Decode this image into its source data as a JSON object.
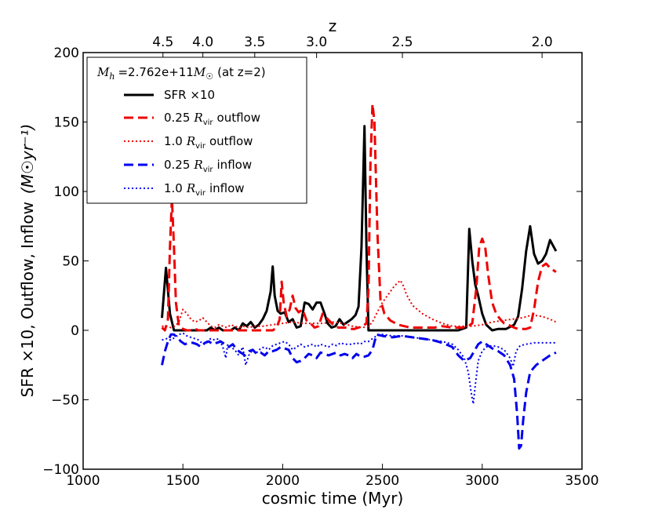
{
  "chart_data": {
    "type": "line",
    "xlabel": "cosmic time (Myr)",
    "ylabel": "SFR ×10, Outflow, Inflow",
    "ylabel_units": "(M☉yr⁻¹)",
    "xlim": [
      1000,
      3500
    ],
    "ylim": [
      -100,
      200
    ],
    "x_ticks": [
      1000,
      1500,
      2000,
      2500,
      3000,
      3500
    ],
    "x_tick_labels": [
      "1000",
      "1500",
      "2000",
      "2500",
      "3000",
      "3500"
    ],
    "y_ticks": [
      -100,
      -50,
      0,
      50,
      100,
      150,
      200
    ],
    "y_tick_labels": [
      "−100",
      "−50",
      "0",
      "50",
      "100",
      "150",
      "200"
    ],
    "top_axis": {
      "label": "z",
      "ticks": [
        {
          "t": 1400,
          "label": "4.5"
        },
        {
          "t": 1600,
          "label": "4.0"
        },
        {
          "t": 1860,
          "label": "3.5"
        },
        {
          "t": 2170,
          "label": "3.0"
        },
        {
          "t": 2600,
          "label": "2.5"
        },
        {
          "t": 3300,
          "label": "2.0"
        }
      ]
    },
    "legend": {
      "title": "M_h =2.762e+11 M☉ (at z=2)",
      "title_mass": "=2.762e+11",
      "title_suffix": "(at z=2)",
      "placement": "top-left",
      "entries": [
        {
          "label": "SFR ×10",
          "text": "SFR ×10"
        },
        {
          "label": "0.25 R_vir outflow",
          "prefix": "0.25",
          "suffix": "outflow"
        },
        {
          "label": "1.0 R_vir outflow",
          "prefix": "1.0",
          "suffix": "outflow"
        },
        {
          "label": "0.25 R_vir inflow",
          "prefix": "0.25",
          "suffix": "inflow"
        },
        {
          "label": "1.0 R_vir inflow",
          "prefix": "1.0",
          "suffix": "inflow"
        }
      ]
    },
    "series": [
      {
        "name": "SFR ×10",
        "color": "#000000",
        "dash": "solid",
        "width": 3,
        "x": [
          1395,
          1415,
          1435,
          1455,
          1475,
          1500,
          1525,
          1550,
          1575,
          1600,
          1620,
          1640,
          1660,
          1680,
          1700,
          1720,
          1740,
          1760,
          1780,
          1800,
          1820,
          1840,
          1860,
          1880,
          1900,
          1920,
          1940,
          1950,
          1960,
          1975,
          1990,
          2010,
          2030,
          2050,
          2070,
          2090,
          2110,
          2130,
          2150,
          2170,
          2190,
          2210,
          2225,
          2245,
          2265,
          2285,
          2305,
          2325,
          2345,
          2365,
          2380,
          2395,
          2410,
          2420,
          2430,
          2450,
          2500,
          2600,
          2700,
          2800,
          2880,
          2920,
          2935,
          2950,
          2965,
          2980,
          3000,
          3020,
          3050,
          3080,
          3120,
          3160,
          3180,
          3200,
          3220,
          3240,
          3260,
          3280,
          3300,
          3320,
          3340,
          3370
        ],
        "y": [
          9,
          45,
          12,
          0,
          0,
          0,
          0,
          0,
          0,
          0,
          0,
          2,
          0,
          2,
          0,
          0,
          0,
          2,
          0,
          5,
          3,
          6,
          2,
          4,
          8,
          14,
          28,
          46,
          25,
          14,
          12,
          13,
          6,
          8,
          2,
          3,
          20,
          19,
          15,
          20,
          20,
          12,
          5,
          2,
          3,
          8,
          4,
          6,
          8,
          11,
          17,
          60,
          147,
          60,
          0,
          0,
          0,
          0,
          0,
          0,
          0,
          2,
          73,
          50,
          33,
          25,
          12,
          4,
          0,
          1,
          1,
          4,
          10,
          30,
          57,
          75,
          55,
          48,
          50,
          55,
          65,
          57
        ]
      },
      {
        "name": "0.25 R_vir outflow",
        "color": "#ee0000",
        "dash": "12,6",
        "width": 3,
        "x": [
          1395,
          1410,
          1425,
          1435,
          1445,
          1455,
          1465,
          1480,
          1500,
          1520,
          1540,
          1560,
          1580,
          1600,
          1620,
          1640,
          1660,
          1680,
          1700,
          1720,
          1740,
          1760,
          1780,
          1800,
          1830,
          1860,
          1890,
          1920,
          1950,
          1970,
          1985,
          1995,
          2005,
          2020,
          2035,
          2050,
          2065,
          2080,
          2100,
          2120,
          2140,
          2160,
          2180,
          2200,
          2220,
          2240,
          2260,
          2280,
          2300,
          2320,
          2340,
          2360,
          2380,
          2400,
          2420,
          2430,
          2440,
          2450,
          2460,
          2475,
          2490,
          2510,
          2540,
          2580,
          2640,
          2700,
          2760,
          2800,
          2850,
          2900,
          2930,
          2950,
          2970,
          2985,
          3000,
          3015,
          3030,
          3050,
          3070,
          3090,
          3110,
          3130,
          3160,
          3180,
          3200,
          3220,
          3240,
          3260,
          3280,
          3300,
          3320,
          3340,
          3370
        ],
        "y": [
          2,
          0,
          8,
          60,
          95,
          60,
          20,
          3,
          1,
          0,
          0,
          1,
          0,
          0,
          0,
          0,
          0,
          0,
          0,
          0,
          0,
          0,
          0,
          0,
          0,
          0,
          0,
          0,
          0,
          2,
          8,
          35,
          20,
          10,
          15,
          25,
          16,
          13,
          15,
          7,
          5,
          2,
          3,
          12,
          9,
          6,
          3,
          2,
          2,
          2,
          1,
          1,
          2,
          3,
          5,
          30,
          120,
          163,
          150,
          70,
          22,
          12,
          7,
          4,
          2,
          2,
          2,
          3,
          2,
          2,
          3,
          5,
          30,
          60,
          66,
          60,
          40,
          20,
          12,
          8,
          5,
          4,
          2,
          1,
          1,
          1,
          2,
          15,
          35,
          46,
          48,
          45,
          42
        ]
      },
      {
        "name": "1.0 R_vir outflow",
        "color": "#ee0000",
        "dash": "2,3",
        "width": 2,
        "x": [
          1395,
          1420,
          1440,
          1460,
          1480,
          1500,
          1520,
          1540,
          1560,
          1580,
          1600,
          1620,
          1640,
          1660,
          1680,
          1700,
          1720,
          1740,
          1760,
          1780,
          1800,
          1830,
          1860,
          1900,
          1950,
          2000,
          2050,
          2100,
          2150,
          2200,
          2250,
          2300,
          2350,
          2400,
          2430,
          2450,
          2470,
          2500,
          2530,
          2560,
          2590,
          2605,
          2620,
          2650,
          2700,
          2750,
          2800,
          2850,
          2900,
          2950,
          3000,
          3050,
          3100,
          3150,
          3200,
          3250,
          3300,
          3340,
          3370
        ],
        "y": [
          3,
          3,
          2,
          3,
          6,
          15,
          12,
          8,
          6,
          7,
          9,
          6,
          3,
          2,
          4,
          3,
          2,
          4,
          3,
          2,
          3,
          2,
          3,
          3,
          4,
          5,
          6,
          5,
          5,
          5,
          6,
          5,
          3,
          2,
          3,
          6,
          12,
          20,
          26,
          32,
          36,
          32,
          26,
          18,
          12,
          8,
          5,
          3,
          3,
          3,
          4,
          6,
          7,
          8,
          9,
          11,
          10,
          8,
          6
        ]
      },
      {
        "name": "0.25 R_vir inflow",
        "color": "#0000ee",
        "dash": "12,6",
        "width": 3,
        "x": [
          1395,
          1410,
          1425,
          1440,
          1455,
          1470,
          1490,
          1510,
          1530,
          1550,
          1570,
          1590,
          1610,
          1630,
          1650,
          1670,
          1690,
          1710,
          1730,
          1750,
          1770,
          1790,
          1810,
          1830,
          1850,
          1870,
          1890,
          1910,
          1930,
          1950,
          1970,
          1990,
          2010,
          2030,
          2050,
          2070,
          2090,
          2110,
          2130,
          2150,
          2170,
          2190,
          2210,
          2230,
          2250,
          2270,
          2290,
          2310,
          2330,
          2350,
          2370,
          2390,
          2410,
          2430,
          2450,
          2470,
          2500,
          2550,
          2600,
          2650,
          2700,
          2750,
          2800,
          2850,
          2880,
          2910,
          2940,
          2960,
          2980,
          3000,
          3020,
          3050,
          3080,
          3110,
          3140,
          3160,
          3175,
          3185,
          3195,
          3205,
          3220,
          3240,
          3270,
          3300,
          3340,
          3370
        ],
        "y": [
          -25,
          -15,
          -8,
          -3,
          -3,
          -5,
          -8,
          -10,
          -9,
          -9,
          -10,
          -12,
          -9,
          -8,
          -10,
          -9,
          -8,
          -10,
          -12,
          -10,
          -14,
          -16,
          -18,
          -15,
          -14,
          -17,
          -16,
          -18,
          -15,
          -15,
          -14,
          -12,
          -13,
          -14,
          -20,
          -23,
          -22,
          -20,
          -17,
          -18,
          -20,
          -16,
          -17,
          -18,
          -17,
          -16,
          -18,
          -17,
          -18,
          -20,
          -17,
          -19,
          -19,
          -18,
          -14,
          -3,
          -4,
          -5,
          -4,
          -5,
          -6,
          -7,
          -9,
          -12,
          -18,
          -22,
          -20,
          -15,
          -10,
          -8,
          -10,
          -13,
          -15,
          -18,
          -25,
          -35,
          -60,
          -85,
          -83,
          -65,
          -45,
          -30,
          -25,
          -22,
          -18,
          -16
        ]
      },
      {
        "name": "1.0 R_vir inflow",
        "color": "#0000ee",
        "dash": "2,3",
        "width": 2,
        "x": [
          1395,
          1420,
          1440,
          1460,
          1480,
          1500,
          1520,
          1540,
          1560,
          1580,
          1600,
          1620,
          1640,
          1660,
          1680,
          1700,
          1715,
          1725,
          1740,
          1760,
          1780,
          1800,
          1815,
          1830,
          1850,
          1870,
          1890,
          1910,
          1930,
          1950,
          1970,
          1990,
          2010,
          2030,
          2050,
          2070,
          2090,
          2110,
          2130,
          2150,
          2170,
          2190,
          2210,
          2230,
          2250,
          2270,
          2290,
          2310,
          2330,
          2350,
          2370,
          2390,
          2410,
          2430,
          2450,
          2470,
          2500,
          2550,
          2600,
          2650,
          2700,
          2750,
          2800,
          2850,
          2880,
          2910,
          2930,
          2945,
          2955,
          2965,
          2980,
          3000,
          3020,
          3050,
          3080,
          3110,
          3140,
          3155,
          3170,
          3190,
          3220,
          3260,
          3300,
          3340,
          3370
        ],
        "y": [
          -7,
          -6,
          -7,
          -5,
          -3,
          -2,
          -4,
          -5,
          -6,
          -7,
          -10,
          -8,
          -6,
          -7,
          -6,
          -12,
          -20,
          -10,
          -12,
          -14,
          -18,
          -12,
          -25,
          -18,
          -14,
          -16,
          -13,
          -12,
          -14,
          -11,
          -10,
          -9,
          -8,
          -10,
          -14,
          -12,
          -10,
          -12,
          -11,
          -10,
          -12,
          -10,
          -11,
          -12,
          -10,
          -11,
          -9,
          -10,
          -10,
          -10,
          -9,
          -10,
          -8,
          -8,
          -6,
          -4,
          -3,
          -4,
          -4,
          -5,
          -6,
          -7,
          -8,
          -10,
          -14,
          -20,
          -30,
          -45,
          -53,
          -40,
          -22,
          -15,
          -12,
          -11,
          -12,
          -14,
          -20,
          -26,
          -15,
          -11,
          -10,
          -9,
          -9,
          -9,
          -9
        ]
      }
    ]
  }
}
